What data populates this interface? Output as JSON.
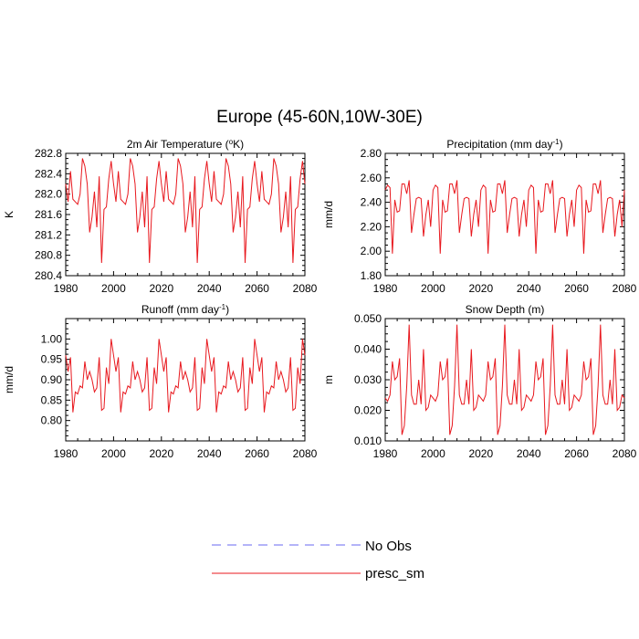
{
  "figure_title": "Europe (45-60N,10W-30E)",
  "legend": {
    "entries": [
      {
        "label": "No Obs",
        "style": "dashed",
        "color": "#6a6af2"
      },
      {
        "label": "presc_sm",
        "style": "solid",
        "color": "#e8181e"
      }
    ]
  },
  "chart_data": [
    {
      "type": "line",
      "title": "2m Air Temperature (",
      "title_sup": "o",
      "title_after": "K)",
      "ylabel": "K",
      "xlim": [
        1980,
        2080
      ],
      "ylim": [
        280.4,
        282.8
      ],
      "xticks": [
        1980,
        2000,
        2020,
        2040,
        2060,
        2080
      ],
      "xtick_labels": [
        "1980",
        "2000",
        "2020",
        "2040",
        "2060",
        "2080"
      ],
      "yticks": [
        280.4,
        280.8,
        281.2,
        281.6,
        282.0,
        282.4,
        282.8
      ],
      "ytick_labels": [
        "280.4",
        "280.8",
        "281.2",
        "281.6",
        "282.0",
        "282.4",
        "282.8"
      ],
      "series": [
        {
          "name": "presc_sm",
          "color": "#e8181e",
          "x": [
            1980,
            1981,
            1982,
            1983,
            1984,
            1985,
            1986,
            1987,
            1988,
            1989,
            1990,
            1991,
            1992,
            1993,
            1994,
            1995,
            1996,
            1997,
            1998,
            1999,
            2000
          ],
          "y": [
            282.2,
            281.85,
            282.45,
            281.9,
            281.85,
            281.8,
            282.0,
            282.7,
            282.55,
            282.2,
            281.25,
            281.55,
            282.05,
            281.35,
            282.35,
            280.65,
            281.7,
            281.75,
            282.3,
            282.65,
            281.95
          ],
          "periodic": true
        }
      ]
    },
    {
      "type": "line",
      "title": "Precipitation (mm day",
      "title_sup": "-1",
      "title_after": ")",
      "ylabel": "mm/d",
      "xlim": [
        1980,
        2080
      ],
      "ylim": [
        1.8,
        2.8
      ],
      "xticks": [
        1980,
        2000,
        2020,
        2040,
        2060,
        2080
      ],
      "xtick_labels": [
        "1980",
        "2000",
        "2020",
        "2040",
        "2060",
        "2080"
      ],
      "yticks": [
        1.8,
        2.0,
        2.2,
        2.4,
        2.6,
        2.8
      ],
      "ytick_labels": [
        "1.80",
        "2.00",
        "2.20",
        "2.40",
        "2.60",
        "2.80"
      ],
      "series": [
        {
          "name": "presc_sm",
          "color": "#e8181e",
          "x": [
            1980,
            1981,
            1982,
            1983,
            1984,
            1985,
            1986,
            1987,
            1988,
            1989,
            1990,
            1991,
            1992,
            1993,
            1994,
            1995,
            1996,
            1997,
            1998,
            1999,
            2000
          ],
          "y": [
            2.5,
            2.54,
            2.52,
            1.98,
            2.42,
            2.32,
            2.33,
            2.55,
            2.55,
            2.47,
            2.58,
            2.15,
            2.3,
            2.43,
            2.44,
            2.43,
            2.12,
            2.3,
            2.42,
            2.2,
            2.61
          ],
          "periodic": true
        }
      ]
    },
    {
      "type": "line",
      "title": "Runoff (mm day",
      "title_sup": "-1",
      "title_after": ")",
      "ylabel": "mm/d",
      "xlim": [
        1980,
        2080
      ],
      "ylim": [
        0.75,
        1.05
      ],
      "xticks": [
        1980,
        2000,
        2020,
        2040,
        2060,
        2080
      ],
      "xtick_labels": [
        "1980",
        "2000",
        "2020",
        "2040",
        "2060",
        "2080"
      ],
      "yticks": [
        0.8,
        0.85,
        0.9,
        0.95,
        1.0
      ],
      "ytick_labels": [
        "0.80",
        "0.85",
        "0.90",
        "0.95",
        "1.00"
      ],
      "series": [
        {
          "name": "presc_sm",
          "color": "#e8181e",
          "x": [
            1980,
            1981,
            1982,
            1983,
            1984,
            1985,
            1986,
            1987,
            1988,
            1989,
            1990,
            1991,
            1992,
            1993,
            1994,
            1995,
            1996,
            1997,
            1998,
            1999,
            2000
          ],
          "y": [
            0.96,
            0.92,
            0.955,
            0.82,
            0.87,
            0.865,
            0.885,
            0.88,
            0.945,
            0.9,
            0.92,
            0.9,
            0.87,
            0.88,
            0.955,
            0.825,
            0.83,
            0.93,
            0.89,
            1.0,
            0.97
          ],
          "periodic": true
        }
      ]
    },
    {
      "type": "line",
      "title": "Snow Depth (m)",
      "title_sup": "",
      "title_after": "",
      "ylabel": "m",
      "xlim": [
        1980,
        2080
      ],
      "ylim": [
        0.01,
        0.05
      ],
      "xticks": [
        1980,
        2000,
        2020,
        2040,
        2060,
        2080
      ],
      "xtick_labels": [
        "1980",
        "2000",
        "2020",
        "2040",
        "2060",
        "2080"
      ],
      "yticks": [
        0.01,
        0.02,
        0.03,
        0.04,
        0.05
      ],
      "ytick_labels": [
        "0.010",
        "0.020",
        "0.030",
        "0.040",
        "0.050"
      ],
      "series": [
        {
          "name": "presc_sm",
          "color": "#e8181e",
          "x": [
            1980,
            1981,
            1982,
            1983,
            1984,
            1985,
            1986,
            1987,
            1988,
            1989,
            1990,
            1991,
            1992,
            1993,
            1994,
            1995,
            1996,
            1997,
            1998,
            1999,
            2000
          ],
          "y": [
            0.024,
            0.023,
            0.025,
            0.036,
            0.03,
            0.031,
            0.037,
            0.012,
            0.015,
            0.028,
            0.048,
            0.025,
            0.022,
            0.022,
            0.03,
            0.022,
            0.04,
            0.02,
            0.021,
            0.025,
            0.022
          ],
          "periodic": true
        }
      ]
    }
  ]
}
